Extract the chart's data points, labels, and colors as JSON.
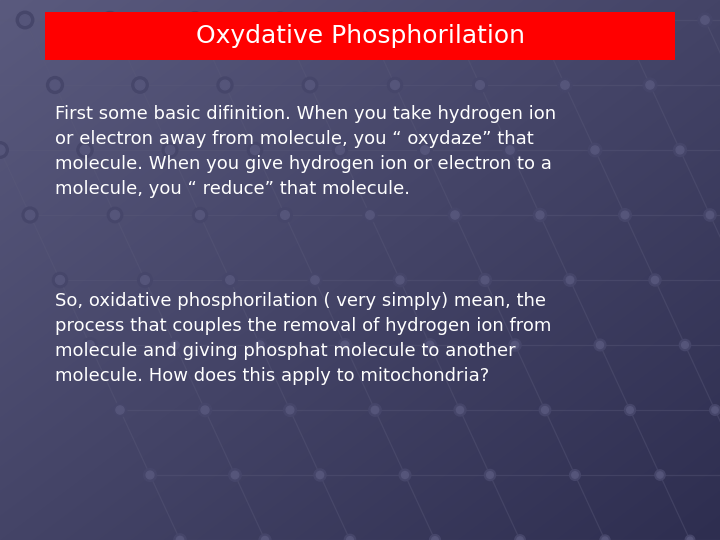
{
  "title": "Oxydative Phosphorilation",
  "title_bg_color": "#ff0000",
  "title_text_color": "#ffffff",
  "title_fontsize": 18,
  "bg_color_left": "#5a5a7e",
  "bg_color_right": "#38385a",
  "paragraph1": "First some basic difinition. When you take hydrogen ion\nor electron away from molecule, you “ oxydaze” that\nmolecule. When you give hydrogen ion or electron to a\nmolecule, you “ reduce” that molecule.",
  "paragraph2": "So, oxidative phosphorilation ( very simply) mean, the\nprocess that couples the removal of hydrogen ion from\nmolecule and giving phosphat molecule to another\nmolecule. How does this apply to mitochondria?",
  "text_color": "#ffffff",
  "text_fontsize": 13,
  "node_color": "#4a4a70",
  "node_edge_color": "#5a5a80",
  "line_color": "#5050708"
}
